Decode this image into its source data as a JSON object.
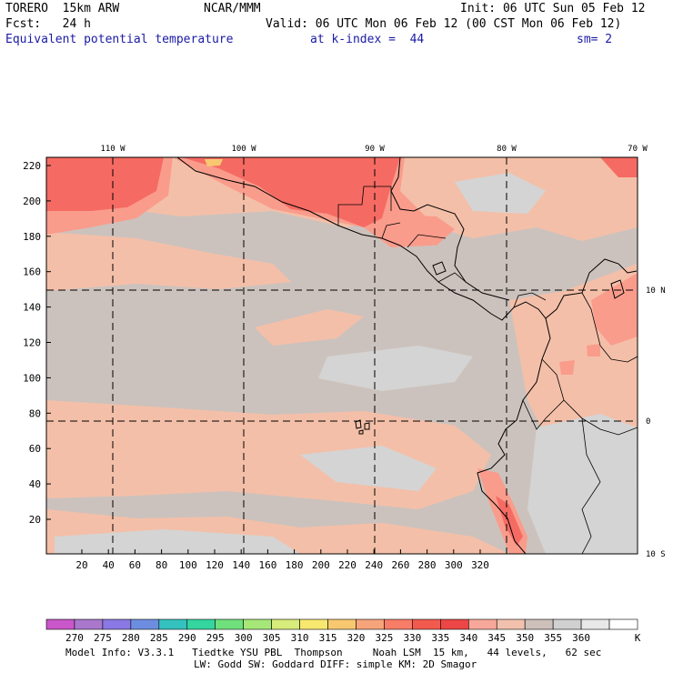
{
  "header": {
    "model": "TORERO  15km ARW",
    "org": "NCAR/MMM",
    "init": "Init: 06 UTC Sun 05 Feb 12",
    "fcst": "Fcst:   24 h",
    "valid": "Valid: 06 UTC Mon 06 Feb 12 (00 CST Mon 06 Feb 12)",
    "field": "Equivalent potential temperature",
    "level": "at k-index =  44",
    "smooth": "sm= 2"
  },
  "map": {
    "x_ticks": [
      "20",
      "40",
      "60",
      "80",
      "100",
      "120",
      "140",
      "160",
      "180",
      "200",
      "220",
      "240",
      "260",
      "280",
      "300",
      "320"
    ],
    "y_ticks": [
      "20",
      "40",
      "60",
      "80",
      "100",
      "120",
      "140",
      "160",
      "180",
      "200",
      "220"
    ],
    "lon_labels": [
      "110 W",
      "100 W",
      "90 W",
      "80 W",
      "70 W"
    ],
    "lat_labels": [
      "10 N",
      "0",
      "10 S"
    ],
    "colors": {
      "base": "#ccc2bd",
      "warm": "#f4bfa8",
      "light": "#d4d4d4",
      "hot": "#fa9c8c",
      "red": "#f56b63",
      "deep": "#eb4a45",
      "yellow": "#f8c870"
    }
  },
  "colorbar": {
    "colors": [
      "#c957c9",
      "#a978cc",
      "#8a78e4",
      "#6d8ee0",
      "#35c2be",
      "#35d5a0",
      "#70e07c",
      "#a6e878",
      "#d7ec7a",
      "#f7e870",
      "#f8c870",
      "#f8a47a",
      "#f77d68",
      "#f25a4e",
      "#ec4646",
      "#f8a89a",
      "#f1c1ae",
      "#cdbfb9",
      "#d0d0d0",
      "#e8e8e8",
      "#ffffff"
    ],
    "labels": [
      "270",
      "275",
      "280",
      "285",
      "290",
      "295",
      "300",
      "305",
      "310",
      "315",
      "320",
      "325",
      "330",
      "335",
      "340",
      "345",
      "350",
      "355",
      "360"
    ],
    "unit": "K"
  },
  "footer": {
    "line1": "Model Info: V3.3.1   Tiedtke YSU PBL  Thompson     Noah LSM  15 km,   44 levels,   62 sec",
    "line2": "LW: Godd SW: Goddard DIFF: simple KM: 2D Smagor"
  }
}
